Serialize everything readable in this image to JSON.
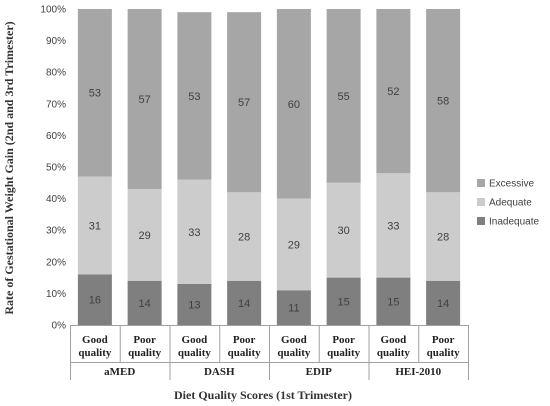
{
  "chart_data": {
    "type": "bar",
    "stacked": true,
    "percent": true,
    "title": "",
    "xlabel": "Diet Quality Scores (1st Trimester)",
    "ylabel": "Rate of Gestational Weight Gain (2nd and 3rd Trimester)",
    "ylim": [
      0,
      100
    ],
    "yticks": [
      "0%",
      "10%",
      "20%",
      "30%",
      "40%",
      "50%",
      "60%",
      "70%",
      "80%",
      "90%",
      "100%"
    ],
    "groups": [
      "aMED",
      "DASH",
      "EDIP",
      "HEI-2010"
    ],
    "categories": [
      {
        "line1": "Good",
        "line2": "quality"
      },
      {
        "line1": "Poor",
        "line2": "quality"
      },
      {
        "line1": "Good",
        "line2": "quality"
      },
      {
        "line1": "Poor",
        "line2": "quality"
      },
      {
        "line1": "Good",
        "line2": "quality"
      },
      {
        "line1": "Poor",
        "line2": "quality"
      },
      {
        "line1": "Good",
        "line2": "quality"
      },
      {
        "line1": "Poor",
        "line2": "quality"
      }
    ],
    "series": [
      {
        "name": "Inadequate",
        "color": "#7f7f7f",
        "values": [
          16,
          14,
          13,
          14,
          11,
          15,
          15,
          14
        ]
      },
      {
        "name": "Adequate",
        "color": "#cccccc",
        "values": [
          31,
          29,
          33,
          28,
          29,
          30,
          33,
          28
        ]
      },
      {
        "name": "Excessive",
        "color": "#a6a6a6",
        "values": [
          53,
          57,
          53,
          57,
          60,
          55,
          52,
          58
        ]
      }
    ],
    "legend": {
      "position": "right",
      "order": [
        "Excessive",
        "Adequate",
        "Inadequate"
      ]
    },
    "grid": false
  }
}
